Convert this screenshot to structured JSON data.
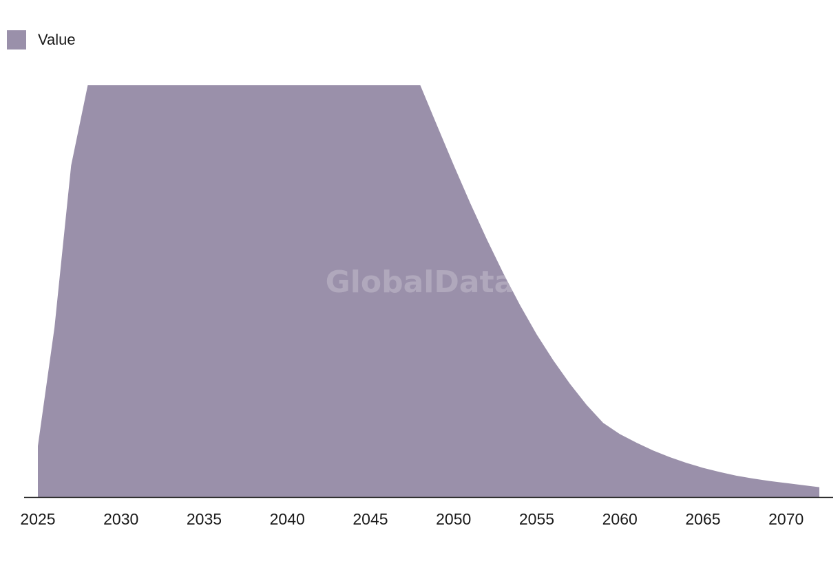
{
  "legend": {
    "label": "Value"
  },
  "watermark": "GlobalData",
  "colors": {
    "area": "#9a90aa",
    "axis": "#1a1a1a"
  },
  "chart_data": {
    "type": "area",
    "title": "",
    "xlabel": "",
    "ylabel": "",
    "grid": false,
    "legend_position": "top-left",
    "series": [
      {
        "name": "Value",
        "x": [
          2025,
          2026,
          2027,
          2028,
          2029,
          2030,
          2031,
          2032,
          2033,
          2034,
          2035,
          2036,
          2037,
          2038,
          2039,
          2040,
          2041,
          2042,
          2043,
          2044,
          2045,
          2046,
          2047,
          2048,
          2049,
          2050,
          2051,
          2052,
          2053,
          2054,
          2055,
          2056,
          2057,
          2058,
          2059,
          2060,
          2061,
          2062,
          2063,
          2064,
          2065,
          2066,
          2067,
          2068,
          2069,
          2070,
          2071,
          2072
        ],
        "values": [
          12.4,
          41.2,
          80.5,
          100,
          100,
          100,
          100,
          100,
          100,
          100,
          100,
          100,
          100,
          100,
          100,
          100,
          100,
          100,
          100,
          100,
          100,
          100,
          100,
          100,
          90.3,
          80.7,
          71.4,
          62.6,
          54.3,
          46.6,
          39.5,
          33.2,
          27.5,
          22.4,
          18.0,
          15.3,
          13.2,
          11.3,
          9.7,
          8.3,
          7.1,
          6.1,
          5.2,
          4.5,
          3.9,
          3.4,
          2.9,
          2.4
        ]
      }
    ],
    "x_ticks": [
      2025,
      2030,
      2035,
      2040,
      2045,
      2050,
      2055,
      2060,
      2065,
      2070
    ],
    "xlim": [
      2025,
      2072
    ],
    "ylim": [
      0,
      100
    ]
  }
}
